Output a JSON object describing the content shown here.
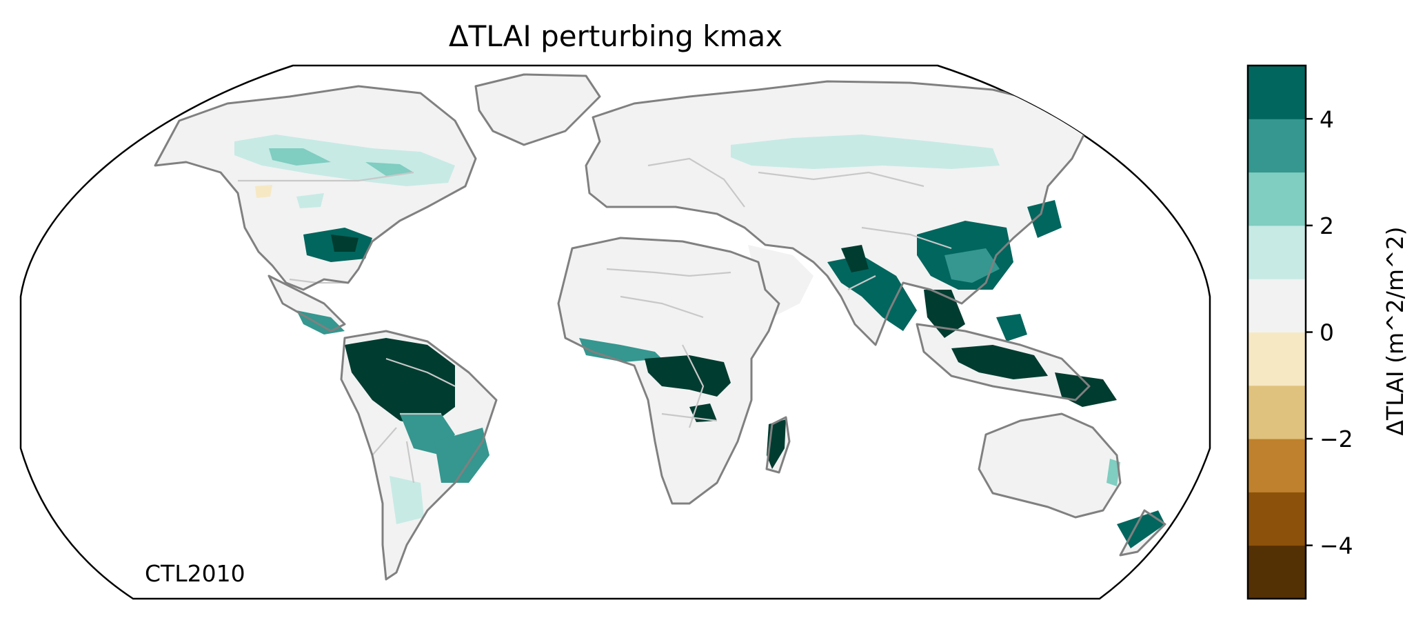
{
  "map": {
    "title": "ΔTLAI perturbing kmax",
    "annotation": "CTL2010",
    "projection": "Robinson",
    "land_color": "#f2f2f2",
    "coastline_color": "#808080",
    "border_color": "#c8c8c8"
  },
  "colorbar": {
    "label": "ΔTLAI (m^2/m^2)",
    "range": [
      -5,
      5
    ],
    "levels": [
      -5,
      -4,
      -3,
      -2,
      -1,
      0,
      1,
      2,
      3,
      4,
      5
    ],
    "colors": [
      "#543005",
      "#8c510a",
      "#bf812d",
      "#dfc27d",
      "#f6e8c3",
      "#f2f2f2",
      "#c7eae5",
      "#80cdc1",
      "#35978f",
      "#01665e",
      "#003c30"
    ],
    "ticks": [
      {
        "value": 4,
        "label": "4"
      },
      {
        "value": 2,
        "label": "2"
      },
      {
        "value": 0,
        "label": "0"
      },
      {
        "value": -2,
        "label": "−2"
      },
      {
        "value": -4,
        "label": "−4"
      }
    ]
  }
}
